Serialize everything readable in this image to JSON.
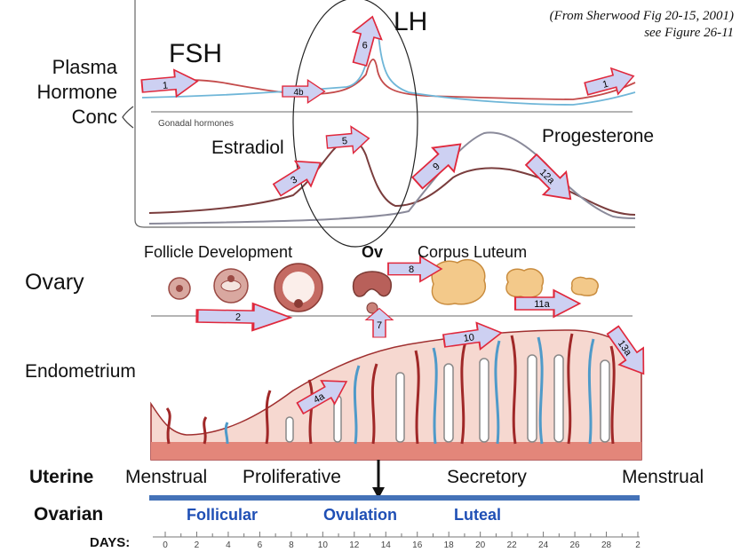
{
  "credit": {
    "line1": "(From Sherwood Fig 20-15, 2001)",
    "line2": "see Figure 26-11"
  },
  "hormone_panel": {
    "axis_label": [
      "Plasma",
      "Hormone",
      "Conc"
    ],
    "fsh": "FSH",
    "lh": "LH",
    "gonadal_caption": "Gonadal hormones",
    "estradiol": "Estradiol",
    "progesterone": "Progesterone"
  },
  "ovary_panel": {
    "label": "Ovary",
    "follicle": "Follicle Development",
    "ov": "Ov",
    "corpus_luteum": "Corpus Luteum"
  },
  "endometrium_label": "Endometrium",
  "uterine": {
    "header": "Uterine",
    "phases": [
      "Menstrual",
      "Proliferative",
      "Secretory",
      "Menstrual"
    ]
  },
  "ovarian": {
    "header": "Ovarian",
    "phases": [
      "Follicular",
      "Ovulation",
      "Luteal"
    ]
  },
  "days": {
    "label": "DAYS:",
    "ticks": [
      "0",
      "2",
      "4",
      "6",
      "8",
      "10",
      "12",
      "14",
      "16",
      "18",
      "20",
      "22",
      "24",
      "26",
      "28",
      "2"
    ]
  },
  "arrows": [
    "1",
    "4b",
    "6",
    "1",
    "3",
    "5",
    "9",
    "12a",
    "2",
    "7",
    "8",
    "11a",
    "10",
    "13a",
    "4a"
  ],
  "colors": {
    "fsh": "#c44b4b",
    "lh": "#6fb6d8",
    "bar": "#4472b8",
    "arrow_fill": "#cdd0f2",
    "arrow_stroke": "#e0283c"
  }
}
